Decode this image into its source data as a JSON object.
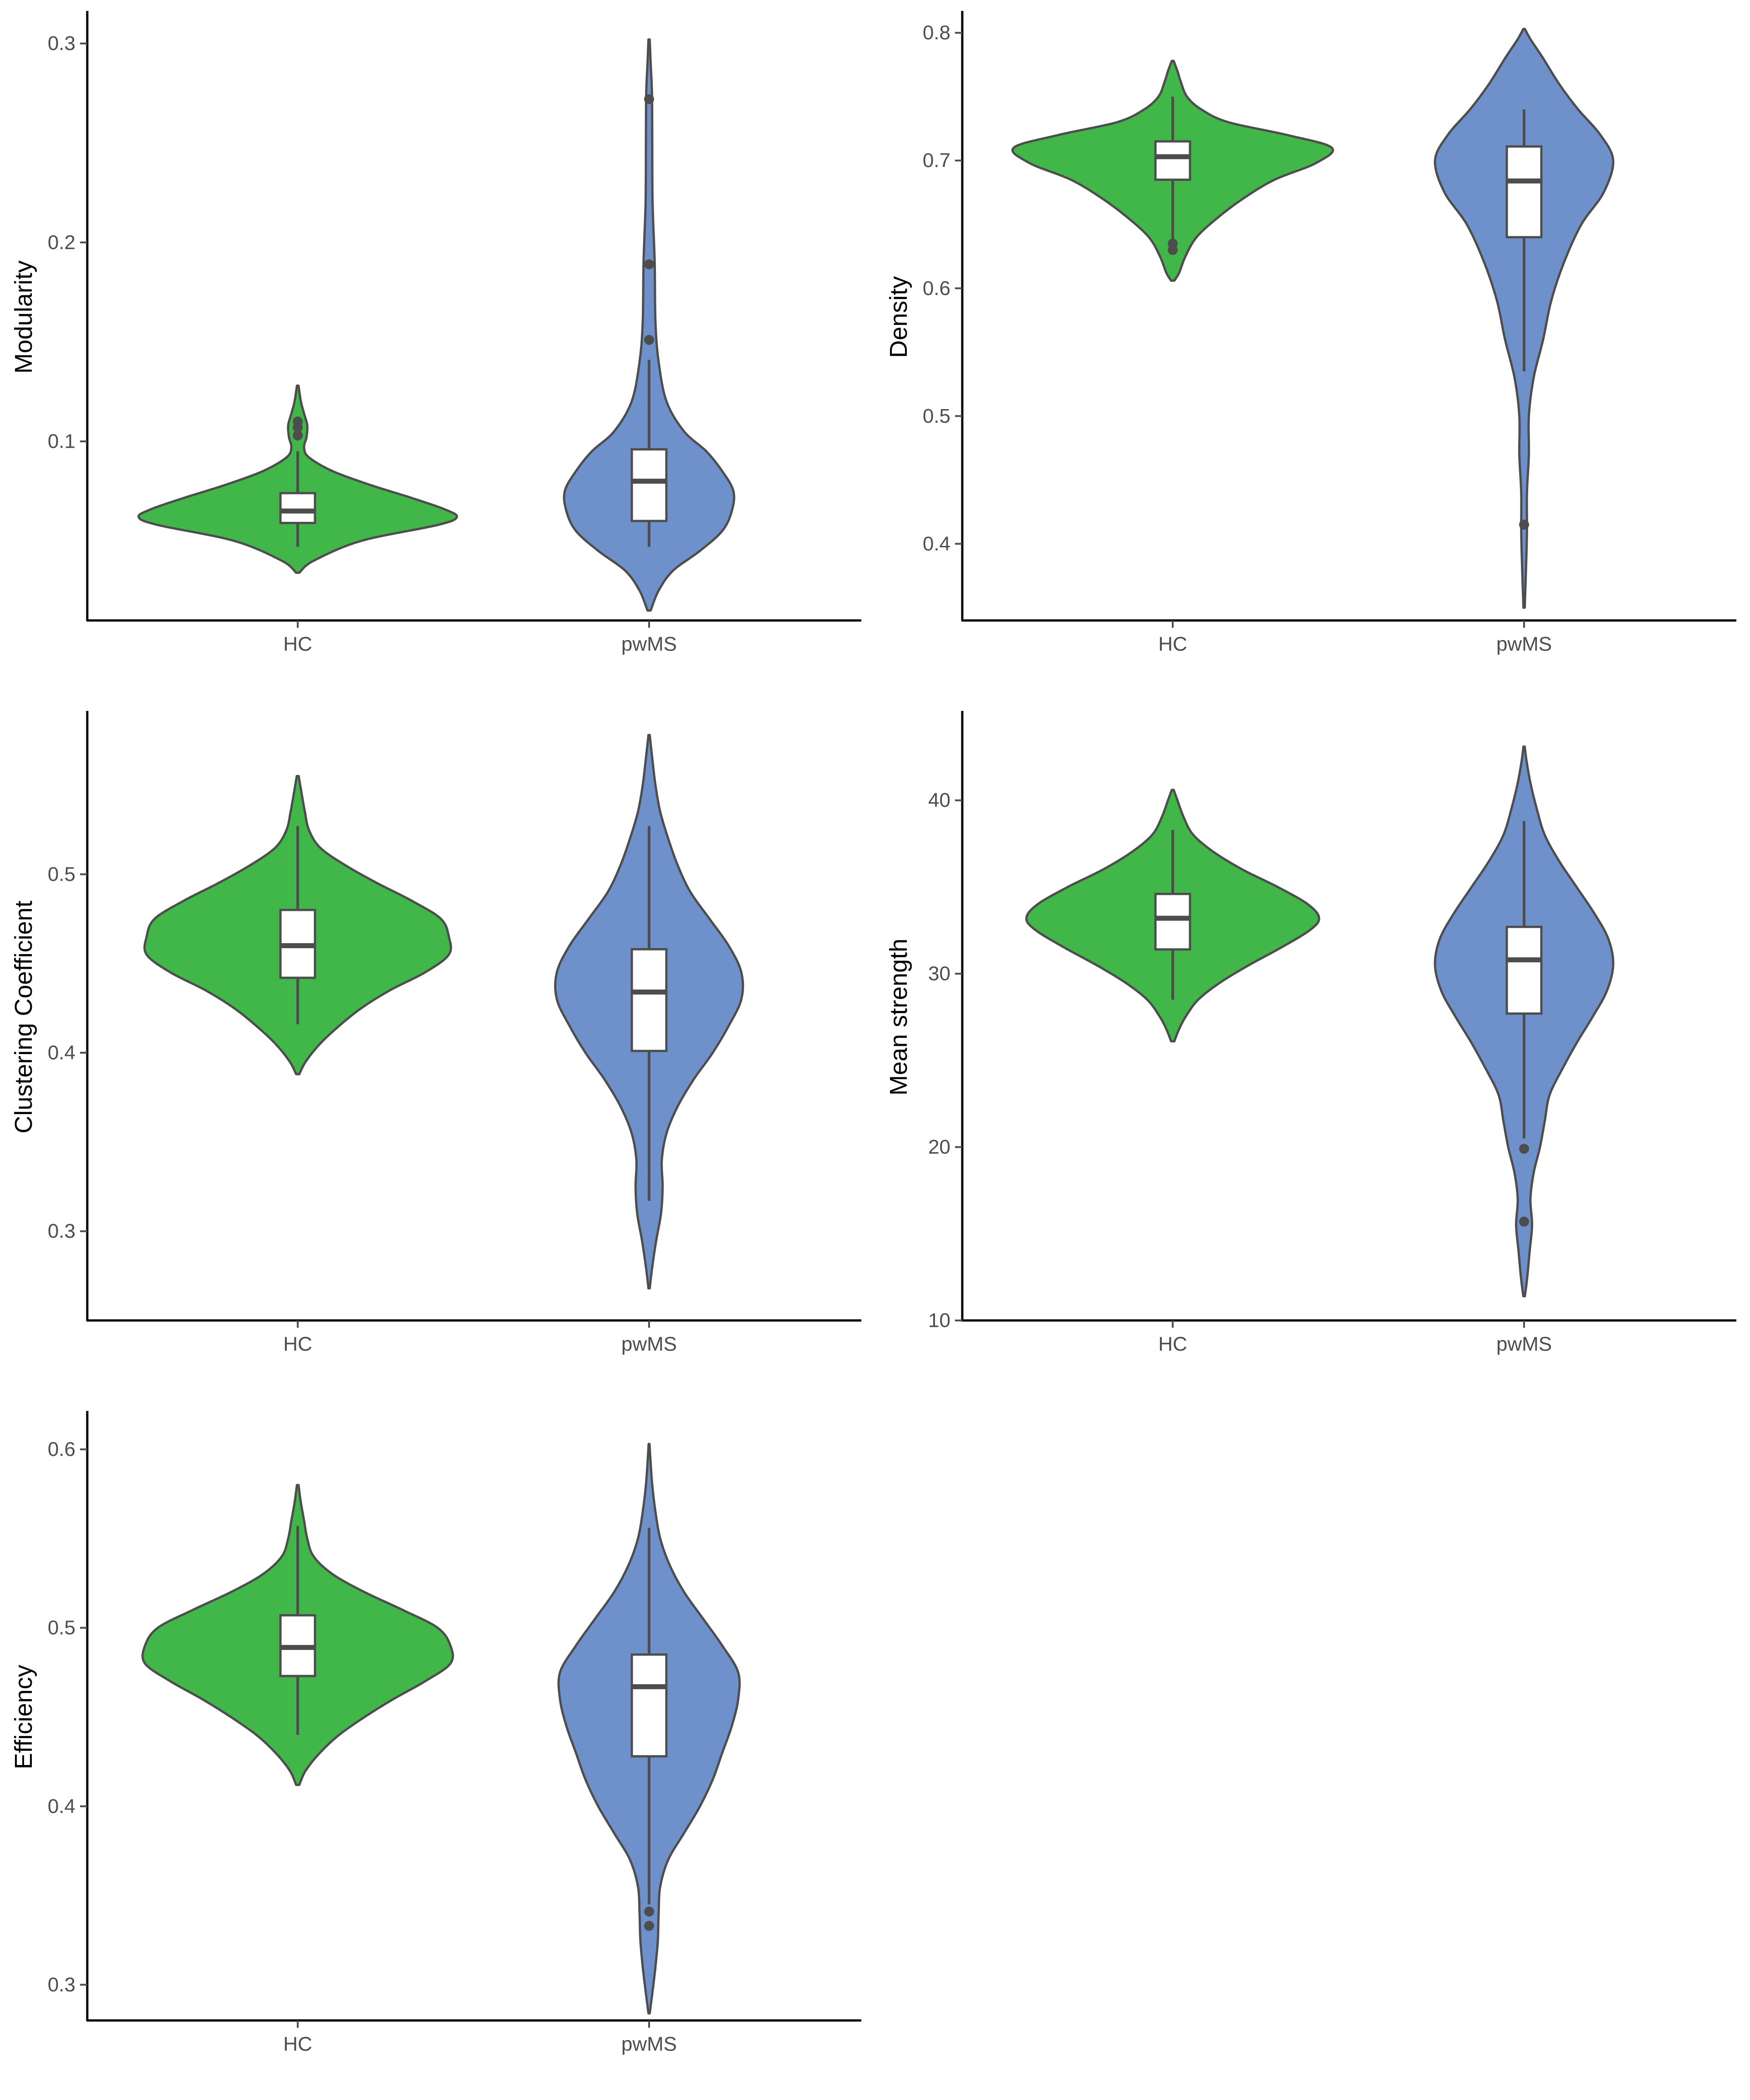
{
  "colors": {
    "HC": "#41b649",
    "pwMS": "#6e91cc",
    "outline": "#4d4d4d",
    "box_fill": "#ffffff",
    "axis": "#000000"
  },
  "chart_data": [
    {
      "type": "violin",
      "ylabel": "Modularity",
      "ylim": [
        0.01,
        0.315
      ],
      "y_ticks": [
        0.1,
        0.2,
        0.3
      ],
      "y_tick_labels": [
        "0.1",
        "0.2",
        "0.3"
      ],
      "categories": [
        "HC",
        "pwMS"
      ],
      "groups": [
        {
          "category": "HC",
          "color": "#41b649",
          "violin_profile": [
            [
              0.034,
              0.01
            ],
            [
              0.04,
              0.1
            ],
            [
              0.05,
              0.4
            ],
            [
              0.058,
              0.88
            ],
            [
              0.062,
              1.0
            ],
            [
              0.066,
              0.92
            ],
            [
              0.072,
              0.7
            ],
            [
              0.078,
              0.46
            ],
            [
              0.085,
              0.22
            ],
            [
              0.092,
              0.07
            ],
            [
              0.097,
              0.04
            ],
            [
              0.102,
              0.055
            ],
            [
              0.108,
              0.06
            ],
            [
              0.114,
              0.04
            ],
            [
              0.12,
              0.02
            ],
            [
              0.128,
              0.005
            ]
          ],
          "box": {
            "q1": 0.059,
            "median": 0.065,
            "q3": 0.074,
            "whisker_low": 0.047,
            "whisker_high": 0.095
          },
          "outliers": [
            0.103,
            0.107,
            0.11
          ]
        },
        {
          "category": "pwMS",
          "color": "#6e91cc",
          "violin_profile": [
            [
              0.015,
              0.01
            ],
            [
              0.025,
              0.06
            ],
            [
              0.035,
              0.15
            ],
            [
              0.045,
              0.32
            ],
            [
              0.055,
              0.46
            ],
            [
              0.065,
              0.52
            ],
            [
              0.075,
              0.53
            ],
            [
              0.085,
              0.46
            ],
            [
              0.095,
              0.36
            ],
            [
              0.105,
              0.22
            ],
            [
              0.12,
              0.11
            ],
            [
              0.14,
              0.06
            ],
            [
              0.16,
              0.04
            ],
            [
              0.19,
              0.035
            ],
            [
              0.22,
              0.022
            ],
            [
              0.25,
              0.02
            ],
            [
              0.275,
              0.018
            ],
            [
              0.29,
              0.01
            ],
            [
              0.302,
              0.004
            ]
          ],
          "box": {
            "q1": 0.06,
            "median": 0.08,
            "q3": 0.096,
            "whisker_low": 0.047,
            "whisker_high": 0.141
          },
          "outliers": [
            0.151,
            0.189,
            0.272
          ]
        }
      ]
    },
    {
      "type": "violin",
      "ylabel": "Density",
      "ylim": [
        0.34,
        0.815
      ],
      "y_ticks": [
        0.4,
        0.5,
        0.6,
        0.7,
        0.8
      ],
      "y_tick_labels": [
        "0.4",
        "0.5",
        "0.6",
        "0.7",
        "0.8"
      ],
      "categories": [
        "HC",
        "pwMS"
      ],
      "groups": [
        {
          "category": "HC",
          "color": "#41b649",
          "violin_profile": [
            [
              0.606,
              0.01
            ],
            [
              0.612,
              0.04
            ],
            [
              0.625,
              0.08
            ],
            [
              0.64,
              0.15
            ],
            [
              0.655,
              0.28
            ],
            [
              0.67,
              0.44
            ],
            [
              0.685,
              0.64
            ],
            [
              0.698,
              0.9
            ],
            [
              0.71,
              1.0
            ],
            [
              0.72,
              0.72
            ],
            [
              0.73,
              0.35
            ],
            [
              0.74,
              0.18
            ],
            [
              0.75,
              0.09
            ],
            [
              0.762,
              0.05
            ],
            [
              0.77,
              0.03
            ],
            [
              0.778,
              0.006
            ]
          ],
          "box": {
            "q1": 0.685,
            "median": 0.703,
            "q3": 0.715,
            "whisker_low": 0.637,
            "whisker_high": 0.75
          },
          "outliers": [
            0.63,
            0.635
          ]
        },
        {
          "category": "pwMS",
          "color": "#6e91cc",
          "violin_profile": [
            [
              0.35,
              0.004
            ],
            [
              0.38,
              0.012
            ],
            [
              0.41,
              0.018
            ],
            [
              0.44,
              0.018
            ],
            [
              0.47,
              0.03
            ],
            [
              0.5,
              0.03
            ],
            [
              0.53,
              0.06
            ],
            [
              0.56,
              0.12
            ],
            [
              0.59,
              0.17
            ],
            [
              0.62,
              0.25
            ],
            [
              0.65,
              0.36
            ],
            [
              0.675,
              0.5
            ],
            [
              0.7,
              0.56
            ],
            [
              0.72,
              0.48
            ],
            [
              0.74,
              0.34
            ],
            [
              0.76,
              0.22
            ],
            [
              0.78,
              0.12
            ],
            [
              0.795,
              0.04
            ],
            [
              0.803,
              0.005
            ]
          ],
          "box": {
            "q1": 0.64,
            "median": 0.684,
            "q3": 0.711,
            "whisker_low": 0.535,
            "whisker_high": 0.74
          },
          "outliers": [
            0.415
          ]
        }
      ]
    },
    {
      "type": "violin",
      "ylabel": "Clustering Coefficient",
      "ylim": [
        0.25,
        0.59
      ],
      "y_ticks": [
        0.3,
        0.4,
        0.5
      ],
      "y_tick_labels": [
        "0.3",
        "0.4",
        "0.5"
      ],
      "categories": [
        "HC",
        "pwMS"
      ],
      "groups": [
        {
          "category": "HC",
          "color": "#41b649",
          "violin_profile": [
            [
              0.388,
              0.01
            ],
            [
              0.395,
              0.05
            ],
            [
              0.405,
              0.14
            ],
            [
              0.415,
              0.26
            ],
            [
              0.425,
              0.4
            ],
            [
              0.435,
              0.58
            ],
            [
              0.445,
              0.8
            ],
            [
              0.455,
              0.95
            ],
            [
              0.465,
              0.95
            ],
            [
              0.475,
              0.9
            ],
            [
              0.485,
              0.72
            ],
            [
              0.495,
              0.5
            ],
            [
              0.505,
              0.3
            ],
            [
              0.515,
              0.14
            ],
            [
              0.525,
              0.07
            ],
            [
              0.535,
              0.045
            ],
            [
              0.545,
              0.025
            ],
            [
              0.555,
              0.006
            ]
          ],
          "box": {
            "q1": 0.442,
            "median": 0.46,
            "q3": 0.48,
            "whisker_low": 0.416,
            "whisker_high": 0.527
          },
          "outliers": []
        },
        {
          "category": "pwMS",
          "color": "#6e91cc",
          "violin_profile": [
            [
              0.268,
              0.004
            ],
            [
              0.28,
              0.02
            ],
            [
              0.295,
              0.045
            ],
            [
              0.31,
              0.075
            ],
            [
              0.325,
              0.085
            ],
            [
              0.34,
              0.08
            ],
            [
              0.355,
              0.11
            ],
            [
              0.37,
              0.18
            ],
            [
              0.385,
              0.28
            ],
            [
              0.4,
              0.4
            ],
            [
              0.415,
              0.5
            ],
            [
              0.43,
              0.58
            ],
            [
              0.445,
              0.58
            ],
            [
              0.46,
              0.5
            ],
            [
              0.475,
              0.38
            ],
            [
              0.49,
              0.26
            ],
            [
              0.505,
              0.18
            ],
            [
              0.52,
              0.12
            ],
            [
              0.535,
              0.07
            ],
            [
              0.55,
              0.04
            ],
            [
              0.565,
              0.02
            ],
            [
              0.578,
              0.004
            ]
          ],
          "box": {
            "q1": 0.401,
            "median": 0.434,
            "q3": 0.458,
            "whisker_low": 0.317,
            "whisker_high": 0.527
          },
          "outliers": []
        }
      ]
    },
    {
      "type": "violin",
      "ylabel": "Mean strength",
      "ylim": [
        10,
        45
      ],
      "y_ticks": [
        10,
        20,
        30,
        40
      ],
      "y_tick_labels": [
        "10",
        "20",
        "30",
        "40"
      ],
      "categories": [
        "HC",
        "pwMS"
      ],
      "groups": [
        {
          "category": "HC",
          "color": "#41b649",
          "violin_profile": [
            [
              26.1,
              0.01
            ],
            [
              26.8,
              0.04
            ],
            [
              27.5,
              0.08
            ],
            [
              28.5,
              0.16
            ],
            [
              29.5,
              0.3
            ],
            [
              30.5,
              0.48
            ],
            [
              31.5,
              0.68
            ],
            [
              32.5,
              0.86
            ],
            [
              33.2,
              0.92
            ],
            [
              34.0,
              0.85
            ],
            [
              35.0,
              0.66
            ],
            [
              36.0,
              0.44
            ],
            [
              37.0,
              0.26
            ],
            [
              38.0,
              0.13
            ],
            [
              39.0,
              0.07
            ],
            [
              40.0,
              0.03
            ],
            [
              40.6,
              0.006
            ]
          ],
          "box": {
            "q1": 31.4,
            "median": 33.2,
            "q3": 34.6,
            "whisker_low": 28.5,
            "whisker_high": 38.3
          },
          "outliers": []
        },
        {
          "category": "pwMS",
          "color": "#6e91cc",
          "violin_profile": [
            [
              11.4,
              0.005
            ],
            [
              12.5,
              0.02
            ],
            [
              14.0,
              0.035
            ],
            [
              15.5,
              0.05
            ],
            [
              17.0,
              0.04
            ],
            [
              18.5,
              0.06
            ],
            [
              20.0,
              0.1
            ],
            [
              21.5,
              0.13
            ],
            [
              23.0,
              0.16
            ],
            [
              24.5,
              0.24
            ],
            [
              26.0,
              0.33
            ],
            [
              27.5,
              0.43
            ],
            [
              29.0,
              0.52
            ],
            [
              30.5,
              0.56
            ],
            [
              32.0,
              0.53
            ],
            [
              33.5,
              0.44
            ],
            [
              35.0,
              0.33
            ],
            [
              36.5,
              0.22
            ],
            [
              38.0,
              0.13
            ],
            [
              39.5,
              0.08
            ],
            [
              41.0,
              0.04
            ],
            [
              42.3,
              0.015
            ],
            [
              43.1,
              0.004
            ]
          ],
          "box": {
            "q1": 27.7,
            "median": 30.8,
            "q3": 32.7,
            "whisker_low": 20.5,
            "whisker_high": 38.8
          },
          "outliers": [
            19.9,
            15.7
          ]
        }
      ]
    },
    {
      "type": "violin",
      "ylabel": "Efficiency",
      "ylim": [
        0.28,
        0.62
      ],
      "y_ticks": [
        0.3,
        0.4,
        0.5,
        0.6
      ],
      "y_tick_labels": [
        "0.3",
        "0.4",
        "0.5",
        "0.6"
      ],
      "categories": [
        "HC",
        "pwMS"
      ],
      "groups": [
        {
          "category": "HC",
          "color": "#41b649",
          "violin_profile": [
            [
              0.412,
              0.01
            ],
            [
              0.42,
              0.05
            ],
            [
              0.43,
              0.14
            ],
            [
              0.44,
              0.26
            ],
            [
              0.45,
              0.42
            ],
            [
              0.46,
              0.6
            ],
            [
              0.47,
              0.8
            ],
            [
              0.48,
              0.96
            ],
            [
              0.49,
              0.96
            ],
            [
              0.5,
              0.88
            ],
            [
              0.51,
              0.66
            ],
            [
              0.52,
              0.42
            ],
            [
              0.53,
              0.22
            ],
            [
              0.54,
              0.1
            ],
            [
              0.55,
              0.06
            ],
            [
              0.56,
              0.04
            ],
            [
              0.57,
              0.02
            ],
            [
              0.58,
              0.005
            ]
          ],
          "box": {
            "q1": 0.473,
            "median": 0.489,
            "q3": 0.507,
            "whisker_low": 0.44,
            "whisker_high": 0.557
          },
          "outliers": []
        },
        {
          "category": "pwMS",
          "color": "#6e91cc",
          "violin_profile": [
            [
              0.284,
              0.004
            ],
            [
              0.295,
              0.02
            ],
            [
              0.31,
              0.04
            ],
            [
              0.325,
              0.055
            ],
            [
              0.34,
              0.06
            ],
            [
              0.355,
              0.07
            ],
            [
              0.37,
              0.12
            ],
            [
              0.385,
              0.22
            ],
            [
              0.4,
              0.32
            ],
            [
              0.415,
              0.4
            ],
            [
              0.43,
              0.46
            ],
            [
              0.445,
              0.52
            ],
            [
              0.46,
              0.56
            ],
            [
              0.475,
              0.56
            ],
            [
              0.49,
              0.46
            ],
            [
              0.505,
              0.34
            ],
            [
              0.52,
              0.22
            ],
            [
              0.535,
              0.13
            ],
            [
              0.55,
              0.07
            ],
            [
              0.565,
              0.04
            ],
            [
              0.58,
              0.02
            ],
            [
              0.595,
              0.008
            ],
            [
              0.603,
              0.003
            ]
          ],
          "box": {
            "q1": 0.428,
            "median": 0.467,
            "q3": 0.485,
            "whisker_low": 0.345,
            "whisker_high": 0.556
          },
          "outliers": [
            0.341,
            0.333
          ]
        }
      ]
    }
  ]
}
